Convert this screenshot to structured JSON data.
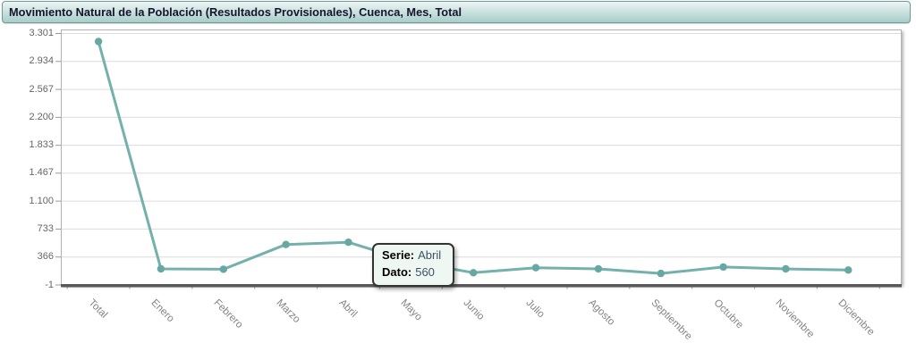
{
  "header": {
    "title": "Movimiento Natural de la Población (Resultados Provisionales), Cuenca, Mes, Total"
  },
  "tooltip": {
    "serie_label": "Serie:",
    "serie_value": "Abril",
    "dato_label": "Dato:",
    "dato_value": "560"
  },
  "chart_data": {
    "type": "line",
    "title": "Movimiento Natural de la Población (Resultados Provisionales), Cuenca, Mes, Total",
    "series_name": "Total",
    "categories": [
      "Total",
      "Enero",
      "Febrero",
      "Marzo",
      "Abril",
      "Mayo",
      "Junio",
      "Julio",
      "Agosto",
      "Septiembre",
      "Octubre",
      "Noviembre",
      "Diciembre"
    ],
    "values": [
      3195,
      210,
      205,
      530,
      560,
      305,
      160,
      225,
      210,
      150,
      235,
      210,
      195
    ],
    "highlighted_point": {
      "serie": "Abril",
      "dato": 560
    },
    "xlabel": "",
    "ylabel": "",
    "ylim": [
      -1,
      3301
    ],
    "y_ticks": [
      {
        "value": 3301,
        "label": "3.301"
      },
      {
        "value": 2934,
        "label": "2.934"
      },
      {
        "value": 2567,
        "label": "2.567"
      },
      {
        "value": 2200,
        "label": "2.200"
      },
      {
        "value": 1833,
        "label": "1.833"
      },
      {
        "value": 1467,
        "label": "1.467"
      },
      {
        "value": 1100,
        "label": "1.100"
      },
      {
        "value": 733,
        "label": "733"
      },
      {
        "value": 366,
        "label": "366"
      },
      {
        "value": -1,
        "label": "-1"
      }
    ],
    "grid": true,
    "legend": false
  },
  "colors": {
    "line": "#74b1ab",
    "marker": "#68a8a2",
    "gridline": "#dcdcdc",
    "plot_border": "#b2b2b2",
    "axis_line": "#58585a",
    "tick": "#999999",
    "titlebar_top": "#ecf5f4",
    "titlebar_bottom": "#a8cdc9",
    "tooltip_bg": "#eff7f2",
    "tooltip_border": "#333333"
  }
}
